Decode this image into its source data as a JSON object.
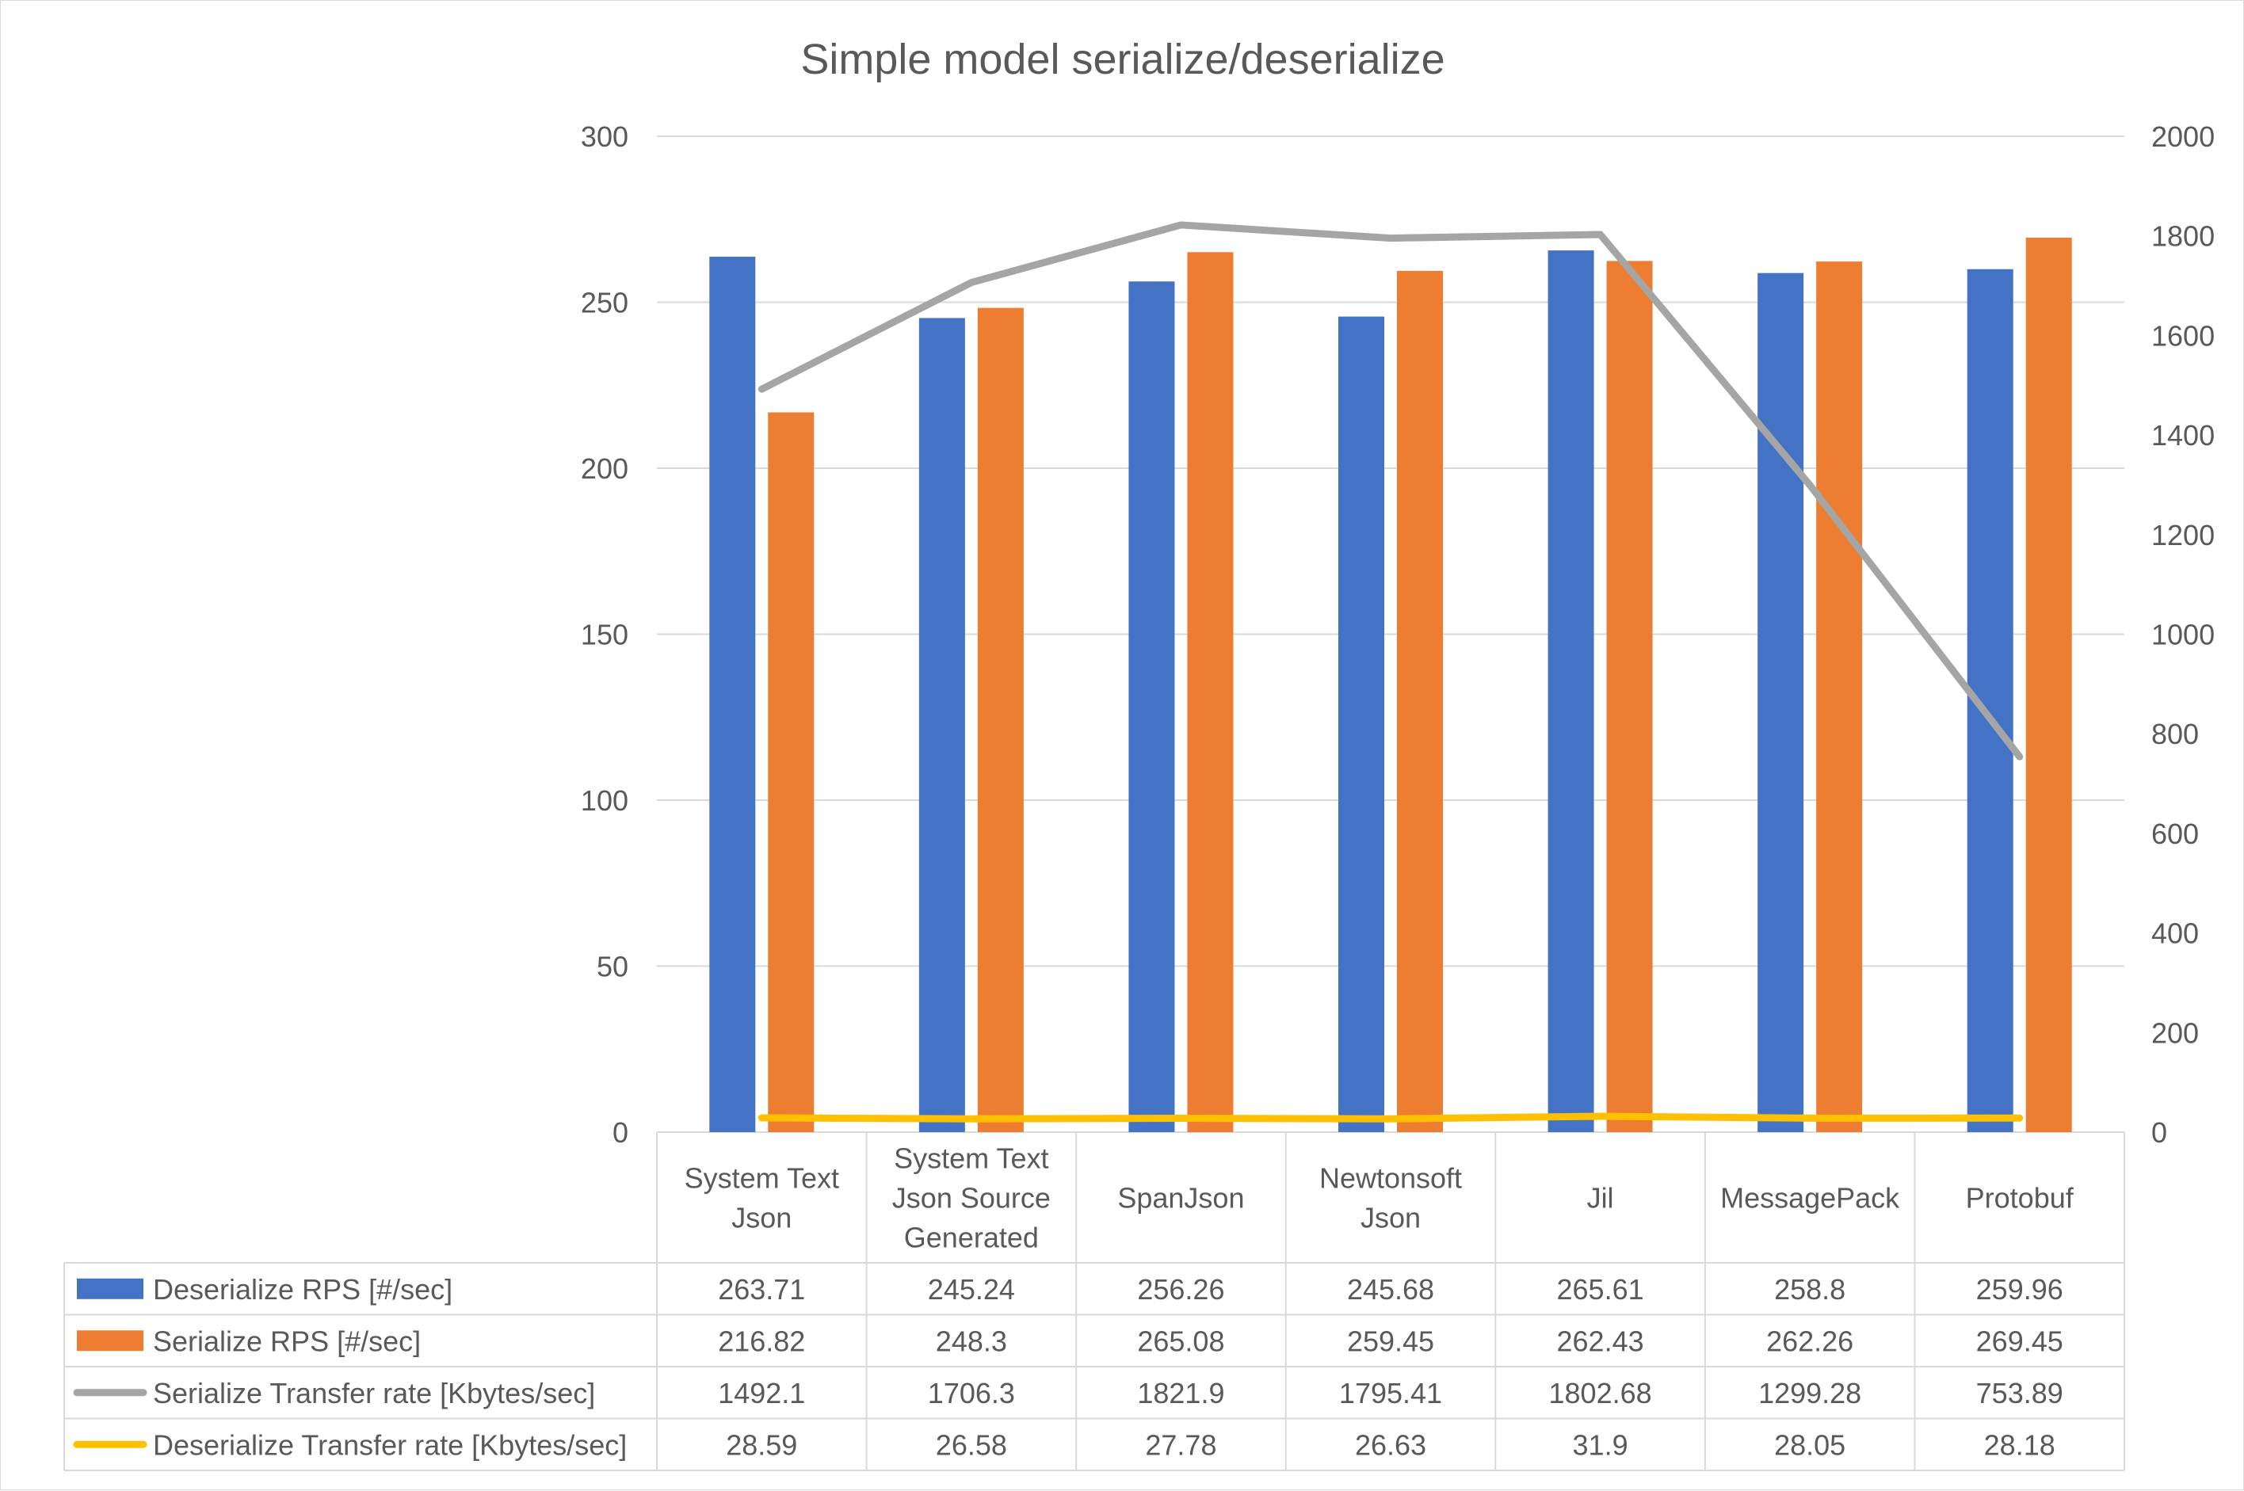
{
  "chart_data": {
    "type": "bar",
    "title": "Simple model serialize/deserialize",
    "categories": [
      [
        "System Text",
        "Json"
      ],
      [
        "System Text",
        "Json Source",
        "Generated"
      ],
      [
        "SpanJson"
      ],
      [
        "Newtonsoft",
        "Json"
      ],
      [
        "Jil"
      ],
      [
        "MessagePack"
      ],
      [
        "Protobuf"
      ]
    ],
    "series": [
      {
        "name": "Deserialize RPS [#/sec]",
        "kind": "bar",
        "axis": "left",
        "color": "#4472C4",
        "values": [
          263.71,
          245.24,
          256.26,
          245.68,
          265.61,
          258.8,
          259.96
        ],
        "labels": [
          "263.71",
          "245.24",
          "256.26",
          "245.68",
          "265.61",
          "258.8",
          "259.96"
        ]
      },
      {
        "name": "Serialize RPS [#/sec]",
        "kind": "bar",
        "axis": "left",
        "color": "#ED7D31",
        "values": [
          216.82,
          248.3,
          265.08,
          259.45,
          262.43,
          262.26,
          269.45
        ],
        "labels": [
          "216.82",
          "248.3",
          "265.08",
          "259.45",
          "262.43",
          "262.26",
          "269.45"
        ]
      },
      {
        "name": "Serialize Transfer rate [Kbytes/sec]",
        "kind": "line",
        "axis": "right",
        "color": "#A5A5A5",
        "values": [
          1492.1,
          1706.3,
          1821.9,
          1795.41,
          1802.68,
          1299.28,
          753.89
        ],
        "labels": [
          "1492.1",
          "1706.3",
          "1821.9",
          "1795.41",
          "1802.68",
          "1299.28",
          "753.89"
        ]
      },
      {
        "name": "Deserialize Transfer rate [Kbytes/sec]",
        "kind": "line",
        "axis": "right",
        "color": "#FFC000",
        "values": [
          28.59,
          26.58,
          27.78,
          26.63,
          31.9,
          28.05,
          28.18
        ],
        "labels": [
          "28.59",
          "26.58",
          "27.78",
          "26.63",
          "31.9",
          "28.05",
          "28.18"
        ]
      }
    ],
    "y_left": {
      "min": 0,
      "max": 300,
      "ticks": [
        "0",
        "50",
        "100",
        "150",
        "200",
        "250",
        "300"
      ]
    },
    "y_right": {
      "min": 0,
      "max": 2000,
      "ticks": [
        "0",
        "200",
        "400",
        "600",
        "800",
        "1000",
        "1200",
        "1400",
        "1600",
        "1800",
        "2000"
      ]
    },
    "grid": true,
    "legend": "data-table"
  }
}
